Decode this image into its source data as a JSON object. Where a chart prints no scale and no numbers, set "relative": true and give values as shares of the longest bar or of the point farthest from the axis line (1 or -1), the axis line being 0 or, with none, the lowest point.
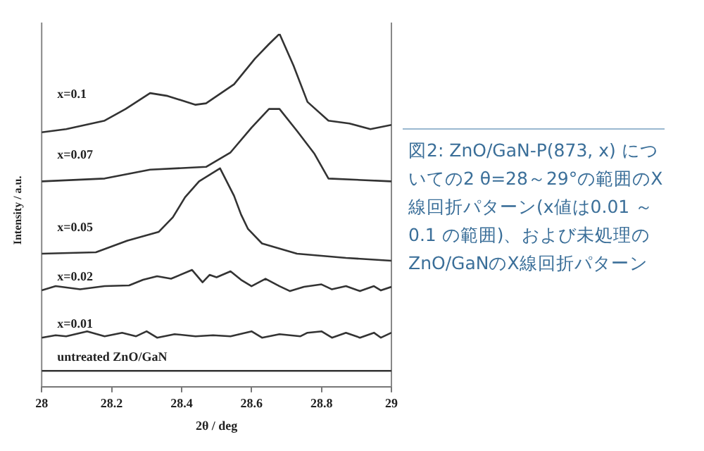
{
  "chart_data": {
    "type": "line",
    "relative": true,
    "xlabel": "2θ / deg",
    "ylabel": "Intensity / a.u.",
    "xlim": [
      28,
      29
    ],
    "xticks": [
      28,
      28.2,
      28.4,
      28.6,
      28.8,
      29
    ],
    "grid": false,
    "legend": false,
    "marker": "none",
    "line_style": "solid",
    "annotations": [
      "図2: ZnO/GaN-P(873, x) についての2 θ=28～29°の範囲のX線回折パターン(x値は0.01 ～0.1 の範囲)、および未処理のZnO/GaNのX線回折パターン"
    ],
    "series": [
      {
        "name": "x=0.1",
        "color": "#333333",
        "x": [
          28.0,
          28.07,
          28.18,
          28.24,
          28.31,
          28.36,
          28.44,
          28.47,
          28.55,
          28.61,
          28.65,
          28.68,
          28.72,
          28.76,
          28.82,
          28.88,
          28.94,
          29.0
        ],
        "values": [
          0.721,
          0.73,
          0.754,
          0.787,
          0.832,
          0.824,
          0.799,
          0.803,
          0.857,
          0.93,
          0.971,
          1,
          0.91,
          0.807,
          0.754,
          0.746,
          0.73,
          0.742
        ]
      },
      {
        "name": "x=0.07",
        "color": "#333333",
        "x": [
          28.0,
          28.18,
          28.31,
          28.47,
          28.54,
          28.6,
          28.65,
          28.68,
          28.73,
          28.78,
          28.82,
          29.0
        ],
        "values": [
          0.582,
          0.59,
          0.615,
          0.623,
          0.664,
          0.734,
          0.787,
          0.787,
          0.725,
          0.66,
          0.59,
          0.582
        ]
      },
      {
        "name": "x=0.05",
        "color": "#333333",
        "x": [
          28.0,
          28.155,
          28.245,
          28.335,
          28.375,
          28.41,
          28.45,
          28.51,
          28.55,
          28.57,
          28.59,
          28.63,
          28.73,
          28.87,
          29.0
        ],
        "values": [
          0.377,
          0.381,
          0.414,
          0.439,
          0.48,
          0.537,
          0.582,
          0.619,
          0.541,
          0.488,
          0.447,
          0.406,
          0.377,
          0.365,
          0.357
        ]
      },
      {
        "name": "x=0.02",
        "color": "#333333",
        "x": [
          28.0,
          28.04,
          28.11,
          28.18,
          28.25,
          28.29,
          28.33,
          28.37,
          28.43,
          28.46,
          28.48,
          28.5,
          28.54,
          28.57,
          28.6,
          28.64,
          28.68,
          28.71,
          28.75,
          28.8,
          28.83,
          28.87,
          28.91,
          28.95,
          28.97,
          29.0
        ],
        "values": [
          0.273,
          0.285,
          0.276,
          0.285,
          0.287,
          0.303,
          0.313,
          0.306,
          0.331,
          0.296,
          0.317,
          0.31,
          0.327,
          0.303,
          0.285,
          0.306,
          0.285,
          0.271,
          0.283,
          0.29,
          0.276,
          0.285,
          0.271,
          0.285,
          0.273,
          0.283
        ]
      },
      {
        "name": "x=0.01",
        "color": "#333333",
        "x": [
          28.0,
          28.04,
          28.07,
          28.13,
          28.18,
          28.23,
          28.27,
          28.3,
          28.33,
          28.38,
          28.44,
          28.49,
          28.54,
          28.6,
          28.63,
          28.68,
          28.74,
          28.76,
          28.8,
          28.83,
          28.87,
          28.91,
          28.95,
          28.97,
          29.0
        ],
        "values": [
          0.139,
          0.146,
          0.143,
          0.157,
          0.143,
          0.153,
          0.143,
          0.157,
          0.139,
          0.149,
          0.143,
          0.146,
          0.143,
          0.157,
          0.139,
          0.149,
          0.143,
          0.153,
          0.157,
          0.139,
          0.153,
          0.139,
          0.153,
          0.139,
          0.153
        ]
      },
      {
        "name": "untreated ZnO/GaN",
        "color": "#333333",
        "x": [
          28.0,
          29.0
        ],
        "values": [
          0.045,
          0.045
        ]
      }
    ]
  }
}
